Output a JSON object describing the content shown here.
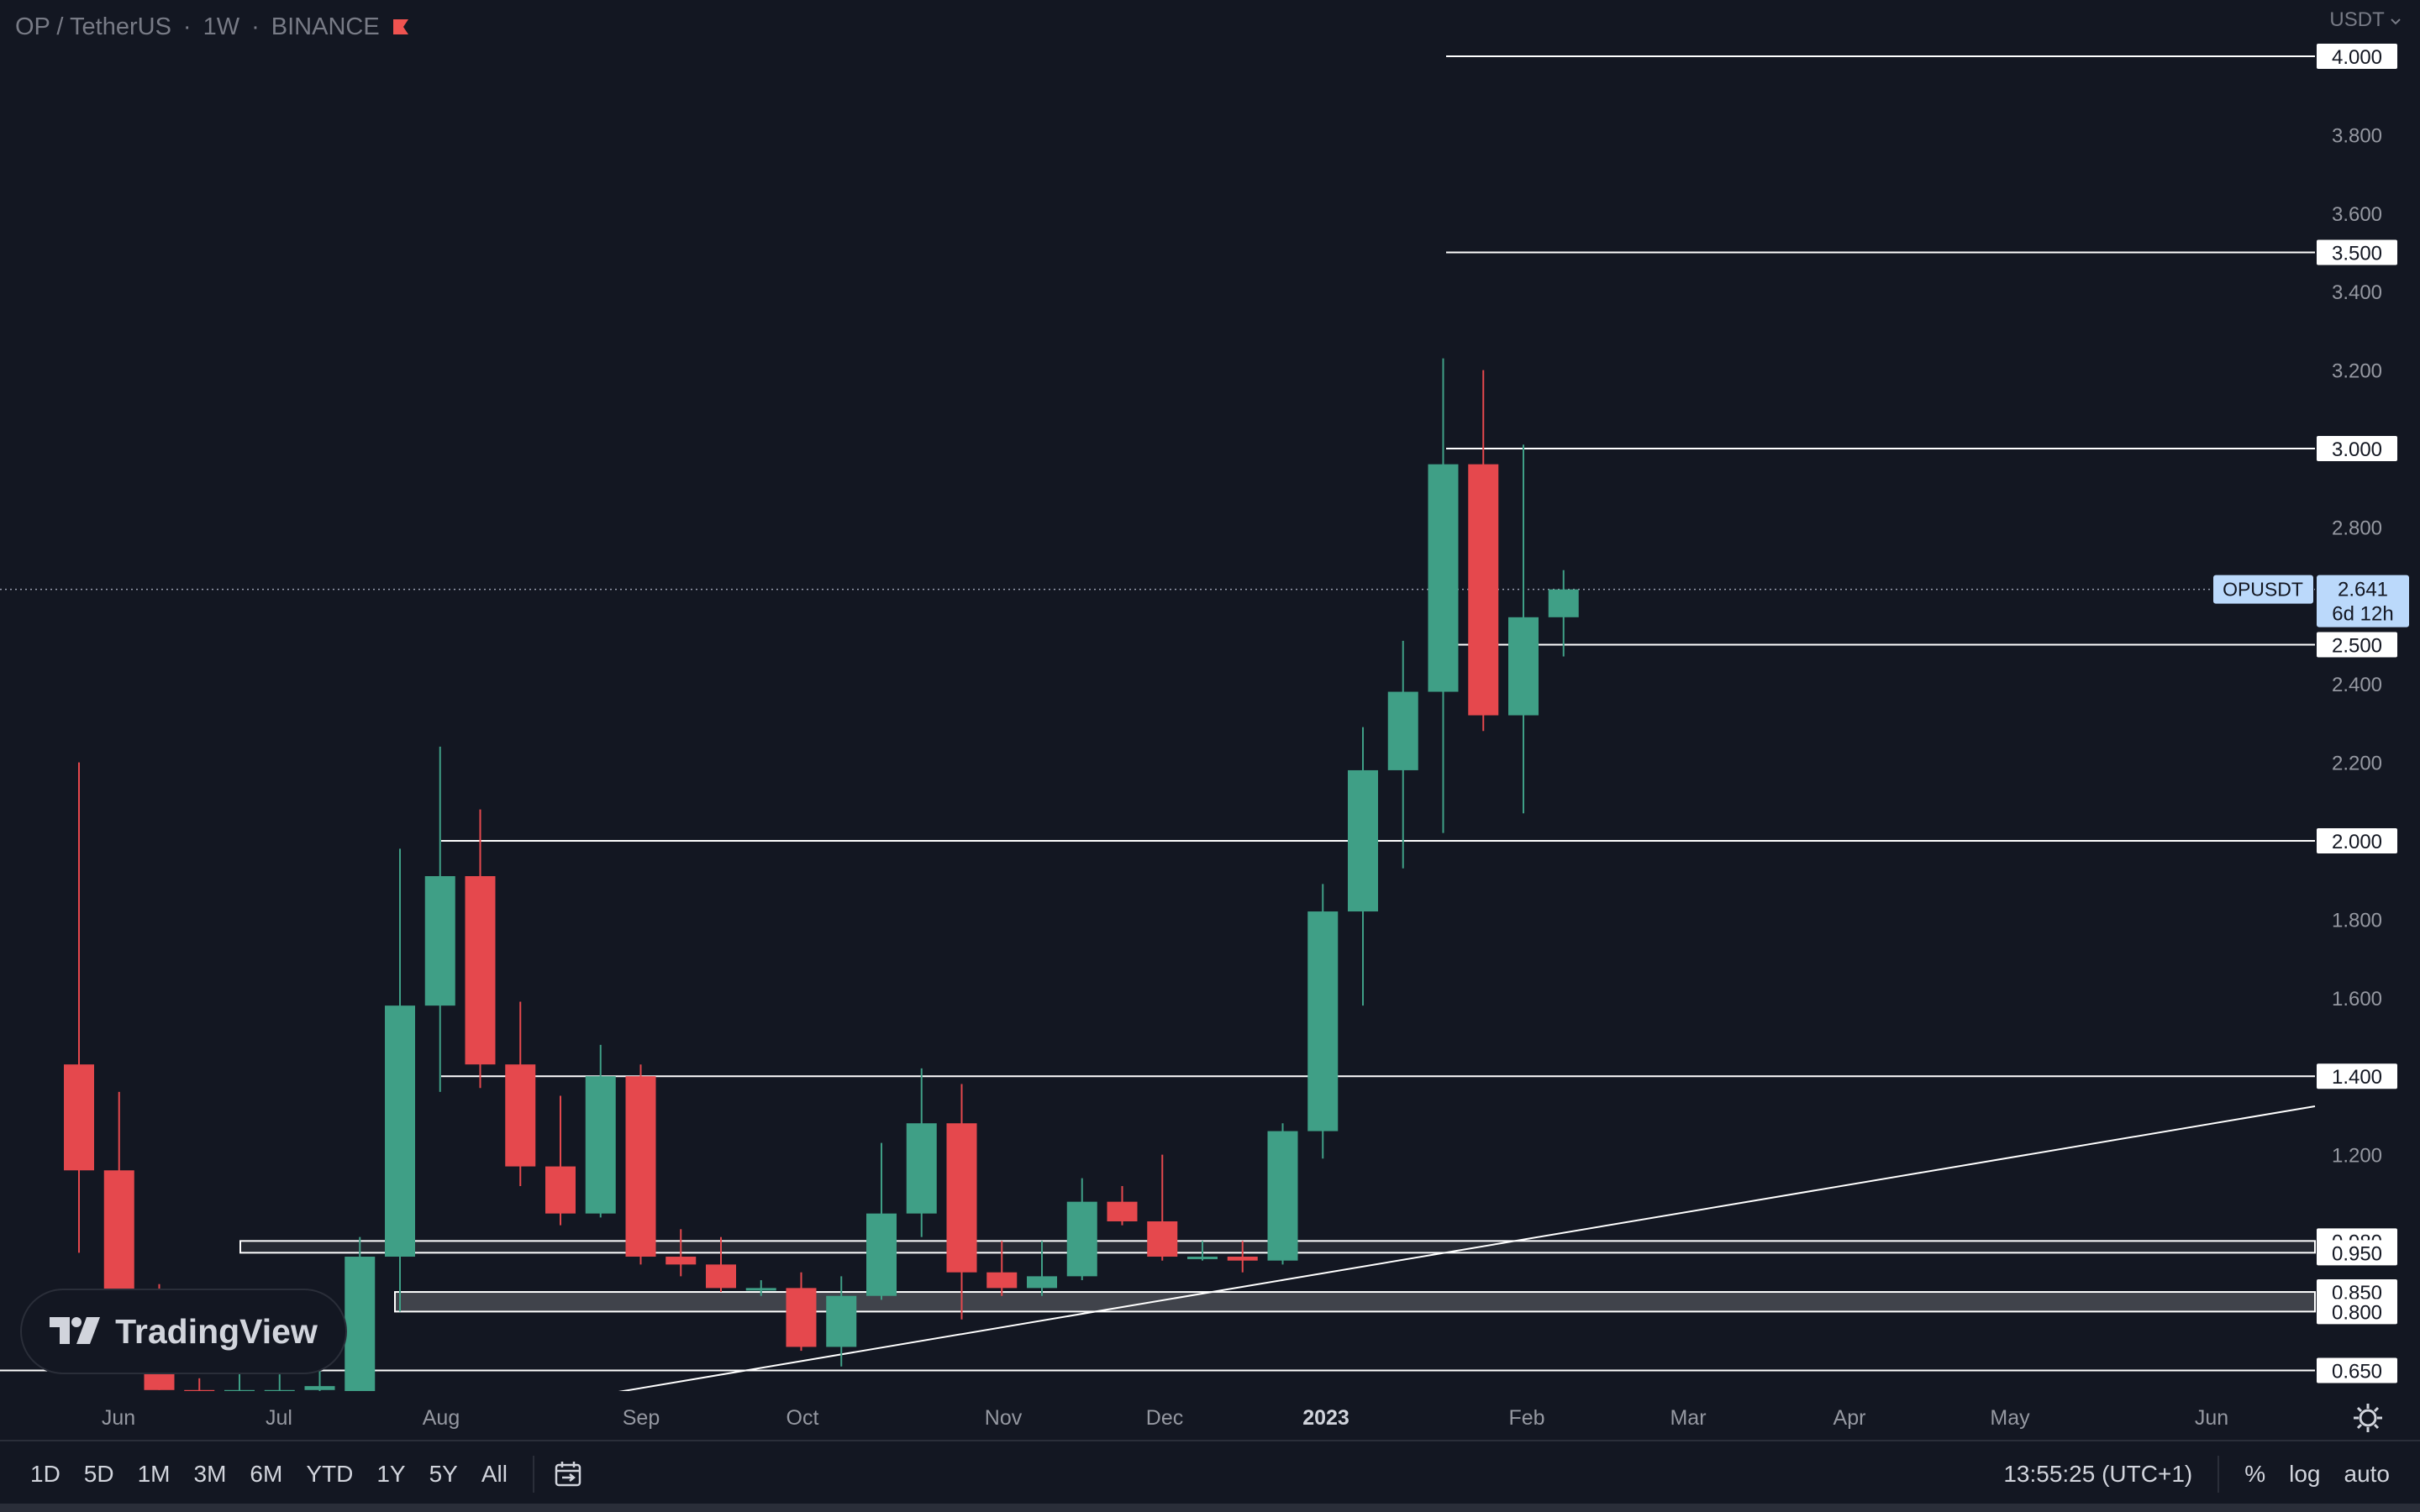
{
  "header": {
    "symbol": "OP / TetherUS",
    "sep1": "·",
    "interval": "1W",
    "sep2": "·",
    "exchange": "BINANCE",
    "flag_color": "#ef5350"
  },
  "currency_selector": "USDT",
  "colors": {
    "background": "#131722",
    "up": "#3f9f86",
    "down": "#e5484d",
    "line": "#ffffff",
    "label_bg": "#ffffff",
    "price_label_bg": "#bbd9fb"
  },
  "price_scale_labels": [
    "4.000",
    "3.800",
    "3.600",
    "3.500",
    "3.400",
    "3.200",
    "3.000",
    "2.800",
    "2.641",
    "2.500",
    "2.400",
    "2.200",
    "2.000",
    "1.800",
    "1.600",
    "1.400",
    "1.200",
    "0.980",
    "0.950",
    "0.850",
    "0.800",
    "0.650"
  ],
  "current_price": {
    "symbol": "OPUSDT",
    "price": "2.641",
    "countdown": "6d 12h"
  },
  "time_axis": [
    "Jun",
    "Jul",
    "Aug",
    "Sep",
    "Oct",
    "Nov",
    "Dec",
    "2023",
    "Feb",
    "Mar",
    "Apr",
    "May",
    "Jun"
  ],
  "logo_text": "TradingView",
  "bottom_bar": {
    "ranges": [
      "1D",
      "5D",
      "1M",
      "3M",
      "6M",
      "YTD",
      "1Y",
      "5Y",
      "All"
    ],
    "time": "13:55:25 (UTC+1)",
    "percent": "%",
    "log": "log",
    "auto": "auto"
  },
  "chart_data": {
    "type": "candlestick",
    "title": "OP / TetherUS · 1W · BINANCE",
    "y_scale": "linear",
    "ylim": [
      0.58,
      4.07
    ],
    "x_axis_ticks": [
      "Jun",
      "Jul",
      "Aug",
      "Sep",
      "Oct",
      "Nov",
      "Dec",
      "2023",
      "Feb",
      "Mar",
      "Apr",
      "May",
      "Jun"
    ],
    "candles": [
      {
        "o": 1.43,
        "h": 2.2,
        "l": 0.95,
        "c": 1.16
      },
      {
        "o": 1.16,
        "h": 1.36,
        "l": 0.67,
        "c": 0.8
      },
      {
        "o": 0.8,
        "h": 0.87,
        "l": 0.6,
        "c": 0.6
      },
      {
        "o": 0.6,
        "h": 0.63,
        "l": 0.54,
        "c": 0.58
      },
      {
        "o": 0.58,
        "h": 0.65,
        "l": 0.53,
        "c": 0.6
      },
      {
        "o": 0.6,
        "h": 0.64,
        "l": 0.56,
        "c": 0.6
      },
      {
        "o": 0.6,
        "h": 0.66,
        "l": 0.55,
        "c": 0.61
      },
      {
        "o": 0.59,
        "h": 0.99,
        "l": 0.55,
        "c": 0.94
      },
      {
        "o": 0.94,
        "h": 1.98,
        "l": 0.8,
        "c": 1.58
      },
      {
        "o": 1.58,
        "h": 2.24,
        "l": 1.36,
        "c": 1.91
      },
      {
        "o": 1.91,
        "h": 2.08,
        "l": 1.37,
        "c": 1.43
      },
      {
        "o": 1.43,
        "h": 1.59,
        "l": 1.12,
        "c": 1.17
      },
      {
        "o": 1.17,
        "h": 1.35,
        "l": 1.02,
        "c": 1.05
      },
      {
        "o": 1.05,
        "h": 1.48,
        "l": 1.04,
        "c": 1.4
      },
      {
        "o": 1.4,
        "h": 1.43,
        "l": 0.92,
        "c": 0.94
      },
      {
        "o": 0.94,
        "h": 1.01,
        "l": 0.89,
        "c": 0.92
      },
      {
        "o": 0.92,
        "h": 0.99,
        "l": 0.85,
        "c": 0.86
      },
      {
        "o": 0.86,
        "h": 0.88,
        "l": 0.84,
        "c": 0.86
      },
      {
        "o": 0.86,
        "h": 0.9,
        "l": 0.7,
        "c": 0.71
      },
      {
        "o": 0.71,
        "h": 0.89,
        "l": 0.66,
        "c": 0.84
      },
      {
        "o": 0.84,
        "h": 1.23,
        "l": 0.83,
        "c": 1.05
      },
      {
        "o": 1.05,
        "h": 1.42,
        "l": 0.99,
        "c": 1.28
      },
      {
        "o": 1.28,
        "h": 1.38,
        "l": 0.78,
        "c": 0.9
      },
      {
        "o": 0.9,
        "h": 0.98,
        "l": 0.84,
        "c": 0.86
      },
      {
        "o": 0.86,
        "h": 0.98,
        "l": 0.84,
        "c": 0.89
      },
      {
        "o": 0.89,
        "h": 1.14,
        "l": 0.88,
        "c": 1.08
      },
      {
        "o": 1.08,
        "h": 1.12,
        "l": 1.02,
        "c": 1.03
      },
      {
        "o": 1.03,
        "h": 1.2,
        "l": 0.93,
        "c": 0.94
      },
      {
        "o": 0.94,
        "h": 0.98,
        "l": 0.93,
        "c": 0.94
      },
      {
        "o": 0.94,
        "h": 0.98,
        "l": 0.9,
        "c": 0.93
      },
      {
        "o": 0.93,
        "h": 1.28,
        "l": 0.92,
        "c": 1.26
      },
      {
        "o": 1.26,
        "h": 1.89,
        "l": 1.19,
        "c": 1.82
      },
      {
        "o": 1.82,
        "h": 2.29,
        "l": 1.58,
        "c": 2.18
      },
      {
        "o": 2.18,
        "h": 2.51,
        "l": 1.93,
        "c": 2.38
      },
      {
        "o": 2.38,
        "h": 3.23,
        "l": 2.02,
        "c": 2.96
      },
      {
        "o": 2.96,
        "h": 3.2,
        "l": 2.28,
        "c": 2.32
      },
      {
        "o": 2.32,
        "h": 3.01,
        "l": 2.07,
        "c": 2.57
      },
      {
        "o": 2.57,
        "h": 2.69,
        "l": 2.47,
        "c": 2.641
      }
    ],
    "horizontal_levels": [
      4.0,
      3.5,
      3.0,
      2.5,
      2.0,
      1.4,
      0.65
    ],
    "zones": [
      [
        0.95,
        0.98
      ],
      [
        0.8,
        0.85
      ]
    ],
    "trendline": {
      "from": {
        "x": "Sep",
        "y": 0.58
      },
      "to": {
        "x": "Jun",
        "y": 1.32
      }
    },
    "current_price": 2.641
  }
}
